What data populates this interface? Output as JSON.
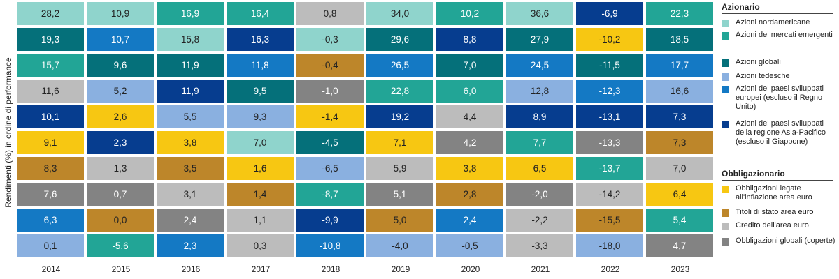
{
  "chart_data": {
    "type": "table",
    "title": "",
    "ylabel": "Rendimenti (%) in ordine di performance",
    "years": [
      "2014",
      "2015",
      "2016",
      "2017",
      "2018",
      "2019",
      "2020",
      "2021",
      "2022",
      "2023"
    ],
    "legend": {
      "groups": [
        {
          "heading": "Azionario",
          "items": [
            {
              "key": "az_nordamericane",
              "label": "Azioni nordamericane"
            },
            {
              "key": "az_emergenti",
              "label": "Azioni dei mercati emergenti"
            },
            {
              "key": "az_globali",
              "label": "Azioni globali"
            },
            {
              "key": "az_tedesche",
              "label": "Azioni tedesche"
            },
            {
              "key": "az_europei",
              "label": "Azioni dei paesi sviluppati europei (escluso il Regno Unito)"
            },
            {
              "key": "az_asiapac",
              "label": "Azioni dei paesi sviluppati della regione Asia-Pacifico (escluso il Giappone)"
            }
          ]
        },
        {
          "heading": "Obbligazionario",
          "items": [
            {
              "key": "ob_inflazione",
              "label": "Obbligazioni legate all'inflazione area euro"
            },
            {
              "key": "ob_stato",
              "label": "Titoli di stato area euro"
            },
            {
              "key": "ob_credito",
              "label": "Credito dell'area euro"
            },
            {
              "key": "ob_globali",
              "label": "Obbligazioni globali (coperte)"
            }
          ]
        }
      ]
    },
    "colors": {
      "az_nordamericane": "#8fd4cc",
      "az_emergenti": "#22a596",
      "az_globali": "#05707a",
      "az_tedesche": "#8ab0e0",
      "az_europei": "#1479c4",
      "az_asiapac": "#063d8f",
      "ob_inflazione": "#f7c712",
      "ob_stato": "#bd862a",
      "ob_credito": "#bcbcbc",
      "ob_globali": "#838383"
    },
    "dark_keys": [
      "az_emergenti",
      "az_globali",
      "az_europei",
      "az_asiapac",
      "ob_globali"
    ],
    "columns": [
      {
        "year": "2014",
        "cells": [
          {
            "value": "28,2",
            "asset": "az_nordamericane"
          },
          {
            "value": "19,3",
            "asset": "az_globali"
          },
          {
            "value": "15,7",
            "asset": "az_emergenti"
          },
          {
            "value": "11,6",
            "asset": "ob_credito"
          },
          {
            "value": "10,1",
            "asset": "az_asiapac"
          },
          {
            "value": "9,1",
            "asset": "ob_inflazione"
          },
          {
            "value": "8,3",
            "asset": "ob_stato"
          },
          {
            "value": "7,6",
            "asset": "ob_globali"
          },
          {
            "value": "6,3",
            "asset": "az_europei"
          },
          {
            "value": "0,1",
            "asset": "az_tedesche"
          }
        ]
      },
      {
        "year": "2015",
        "cells": [
          {
            "value": "10,9",
            "asset": "az_nordamericane"
          },
          {
            "value": "10,7",
            "asset": "az_europei"
          },
          {
            "value": "9,6",
            "asset": "az_globali"
          },
          {
            "value": "5,2",
            "asset": "az_tedesche"
          },
          {
            "value": "2,6",
            "asset": "ob_inflazione"
          },
          {
            "value": "2,3",
            "asset": "az_asiapac"
          },
          {
            "value": "1,3",
            "asset": "ob_credito"
          },
          {
            "value": "0,7",
            "asset": "ob_globali"
          },
          {
            "value": "0,0",
            "asset": "ob_stato"
          },
          {
            "value": "-5,6",
            "asset": "az_emergenti"
          }
        ]
      },
      {
        "year": "2016",
        "cells": [
          {
            "value": "16,9",
            "asset": "az_emergenti"
          },
          {
            "value": "15,8",
            "asset": "az_nordamericane"
          },
          {
            "value": "11,9",
            "asset": "az_globali"
          },
          {
            "value": "11,9",
            "asset": "az_asiapac"
          },
          {
            "value": "5,5",
            "asset": "az_tedesche"
          },
          {
            "value": "3,8",
            "asset": "ob_inflazione"
          },
          {
            "value": "3,5",
            "asset": "ob_stato"
          },
          {
            "value": "3,1",
            "asset": "ob_credito"
          },
          {
            "value": "2,4",
            "asset": "ob_globali"
          },
          {
            "value": "2,3",
            "asset": "az_europei"
          }
        ]
      },
      {
        "year": "2017",
        "cells": [
          {
            "value": "16,4",
            "asset": "az_emergenti"
          },
          {
            "value": "16,3",
            "asset": "az_asiapac"
          },
          {
            "value": "11,8",
            "asset": "az_europei"
          },
          {
            "value": "9,5",
            "asset": "az_globali"
          },
          {
            "value": "9,3",
            "asset": "az_tedesche"
          },
          {
            "value": "7,0",
            "asset": "az_nordamericane"
          },
          {
            "value": "1,6",
            "asset": "ob_inflazione"
          },
          {
            "value": "1,4",
            "asset": "ob_stato"
          },
          {
            "value": "1,1",
            "asset": "ob_credito"
          },
          {
            "value": "0,3",
            "asset": "ob_credito"
          }
        ]
      },
      {
        "year": "2018",
        "cells": [
          {
            "value": "0,8",
            "asset": "ob_credito"
          },
          {
            "value": "-0,3",
            "asset": "az_nordamericane"
          },
          {
            "value": "-0,4",
            "asset": "ob_stato"
          },
          {
            "value": "-1,0",
            "asset": "ob_globali"
          },
          {
            "value": "-1,4",
            "asset": "ob_inflazione"
          },
          {
            "value": "-4,5",
            "asset": "az_globali"
          },
          {
            "value": "-6,5",
            "asset": "az_tedesche"
          },
          {
            "value": "-8,7",
            "asset": "az_emergenti"
          },
          {
            "value": "-9,9",
            "asset": "az_asiapac"
          },
          {
            "value": "-10,8",
            "asset": "az_europei"
          }
        ]
      },
      {
        "year": "2019",
        "cells": [
          {
            "value": "34,0",
            "asset": "az_nordamericane"
          },
          {
            "value": "29,6",
            "asset": "az_globali"
          },
          {
            "value": "26,5",
            "asset": "az_europei"
          },
          {
            "value": "22,8",
            "asset": "az_emergenti"
          },
          {
            "value": "19,2",
            "asset": "az_asiapac"
          },
          {
            "value": "7,1",
            "asset": "ob_inflazione"
          },
          {
            "value": "5,9",
            "asset": "ob_credito"
          },
          {
            "value": "5,1",
            "asset": "ob_globali"
          },
          {
            "value": "5,0",
            "asset": "ob_stato"
          },
          {
            "value": "-4,0",
            "asset": "az_tedesche"
          }
        ]
      },
      {
        "year": "2020",
        "cells": [
          {
            "value": "10,2",
            "asset": "az_emergenti"
          },
          {
            "value": "8,8",
            "asset": "az_asiapac"
          },
          {
            "value": "7,0",
            "asset": "az_globali"
          },
          {
            "value": "6,0",
            "asset": "az_emergenti"
          },
          {
            "value": "4,4",
            "asset": "ob_credito"
          },
          {
            "value": "4,2",
            "asset": "ob_globali"
          },
          {
            "value": "3,8",
            "asset": "ob_inflazione"
          },
          {
            "value": "2,8",
            "asset": "ob_stato"
          },
          {
            "value": "2,4",
            "asset": "az_europei"
          },
          {
            "value": "-0,5",
            "asset": "az_tedesche"
          }
        ]
      },
      {
        "year": "2021",
        "cells": [
          {
            "value": "36,6",
            "asset": "az_nordamericane"
          },
          {
            "value": "27,9",
            "asset": "az_globali"
          },
          {
            "value": "24,5",
            "asset": "az_europei"
          },
          {
            "value": "12,8",
            "asset": "az_tedesche"
          },
          {
            "value": "8,9",
            "asset": "az_asiapac"
          },
          {
            "value": "7,7",
            "asset": "az_emergenti"
          },
          {
            "value": "6,5",
            "asset": "ob_inflazione"
          },
          {
            "value": "-2,0",
            "asset": "ob_globali"
          },
          {
            "value": "-2,2",
            "asset": "ob_credito"
          },
          {
            "value": "-3,3",
            "asset": "ob_credito"
          }
        ]
      },
      {
        "year": "2022",
        "cells": [
          {
            "value": "-6,9",
            "asset": "az_asiapac"
          },
          {
            "value": "-10,2",
            "asset": "ob_inflazione"
          },
          {
            "value": "-11,5",
            "asset": "az_globali"
          },
          {
            "value": "-12,3",
            "asset": "az_europei"
          },
          {
            "value": "-13,1",
            "asset": "az_asiapac"
          },
          {
            "value": "-13,3",
            "asset": "ob_globali"
          },
          {
            "value": "-13,7",
            "asset": "az_emergenti"
          },
          {
            "value": "-14,2",
            "asset": "ob_credito"
          },
          {
            "value": "-15,5",
            "asset": "ob_stato"
          },
          {
            "value": "-18,0",
            "asset": "az_tedesche"
          }
        ]
      },
      {
        "year": "2023",
        "cells": [
          {
            "value": "22,3",
            "asset": "az_emergenti"
          },
          {
            "value": "18,5",
            "asset": "az_globali"
          },
          {
            "value": "17,7",
            "asset": "az_europei"
          },
          {
            "value": "16,6",
            "asset": "az_tedesche"
          },
          {
            "value": "7,3",
            "asset": "az_asiapac"
          },
          {
            "value": "7,3",
            "asset": "ob_stato"
          },
          {
            "value": "7,0",
            "asset": "ob_credito"
          },
          {
            "value": "6,4",
            "asset": "ob_inflazione"
          },
          {
            "value": "5,4",
            "asset": "az_emergenti"
          },
          {
            "value": "4,7",
            "asset": "ob_globali"
          }
        ]
      }
    ]
  }
}
